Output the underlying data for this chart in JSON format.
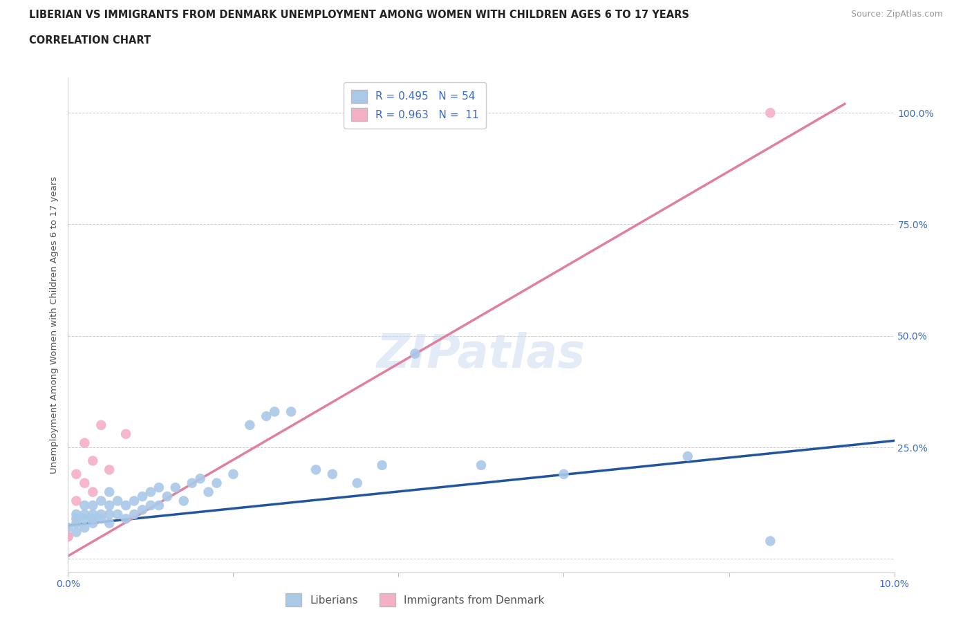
{
  "title_line1": "LIBERIAN VS IMMIGRANTS FROM DENMARK UNEMPLOYMENT AMONG WOMEN WITH CHILDREN AGES 6 TO 17 YEARS",
  "title_line2": "CORRELATION CHART",
  "source": "Source: ZipAtlas.com",
  "ylabel": "Unemployment Among Women with Children Ages 6 to 17 years",
  "watermark": "ZIPatlas",
  "xlim": [
    0.0,
    0.1
  ],
  "ylim": [
    -0.03,
    1.08
  ],
  "yticks": [
    0.0,
    0.25,
    0.5,
    0.75,
    1.0
  ],
  "ytick_labels": [
    "",
    "25.0%",
    "50.0%",
    "75.0%",
    "100.0%"
  ],
  "liberian_R": 0.495,
  "liberian_N": 54,
  "denmark_R": 0.963,
  "denmark_N": 11,
  "liberian_color": "#aac8e8",
  "denmark_color": "#f5b0c5",
  "liberian_line_color": "#2255a0",
  "denmark_line_color": "#e080a0",
  "legend_text_color": "#3a6bbf",
  "title_color": "#222222",
  "grid_color": "#cccccc",
  "right_tick_color": "#3a6bbf",
  "liberian_points_x": [
    0.0,
    0.0,
    0.001,
    0.001,
    0.001,
    0.001,
    0.002,
    0.002,
    0.002,
    0.002,
    0.003,
    0.003,
    0.003,
    0.003,
    0.004,
    0.004,
    0.004,
    0.005,
    0.005,
    0.005,
    0.005,
    0.006,
    0.006,
    0.007,
    0.007,
    0.008,
    0.008,
    0.009,
    0.009,
    0.01,
    0.01,
    0.011,
    0.011,
    0.012,
    0.013,
    0.014,
    0.015,
    0.016,
    0.017,
    0.018,
    0.02,
    0.022,
    0.024,
    0.025,
    0.027,
    0.03,
    0.032,
    0.035,
    0.038,
    0.042,
    0.05,
    0.06,
    0.075,
    0.085
  ],
  "liberian_points_y": [
    0.05,
    0.07,
    0.06,
    0.08,
    0.09,
    0.1,
    0.07,
    0.09,
    0.1,
    0.12,
    0.08,
    0.09,
    0.1,
    0.12,
    0.09,
    0.1,
    0.13,
    0.08,
    0.1,
    0.12,
    0.15,
    0.1,
    0.13,
    0.09,
    0.12,
    0.1,
    0.13,
    0.11,
    0.14,
    0.12,
    0.15,
    0.12,
    0.16,
    0.14,
    0.16,
    0.13,
    0.17,
    0.18,
    0.15,
    0.17,
    0.19,
    0.3,
    0.32,
    0.33,
    0.33,
    0.2,
    0.19,
    0.17,
    0.21,
    0.46,
    0.21,
    0.19,
    0.23,
    0.04
  ],
  "denmark_points_x": [
    0.0,
    0.001,
    0.001,
    0.002,
    0.002,
    0.003,
    0.003,
    0.004,
    0.005,
    0.007,
    0.085
  ],
  "denmark_points_y": [
    0.05,
    0.13,
    0.19,
    0.17,
    0.26,
    0.15,
    0.22,
    0.3,
    0.2,
    0.28,
    1.0
  ],
  "liberian_trend_x": [
    0.0,
    0.1
  ],
  "liberian_trend_y": [
    0.075,
    0.265
  ],
  "denmark_trend_x": [
    -0.002,
    0.094
  ],
  "denmark_trend_y": [
    -0.015,
    1.02
  ]
}
